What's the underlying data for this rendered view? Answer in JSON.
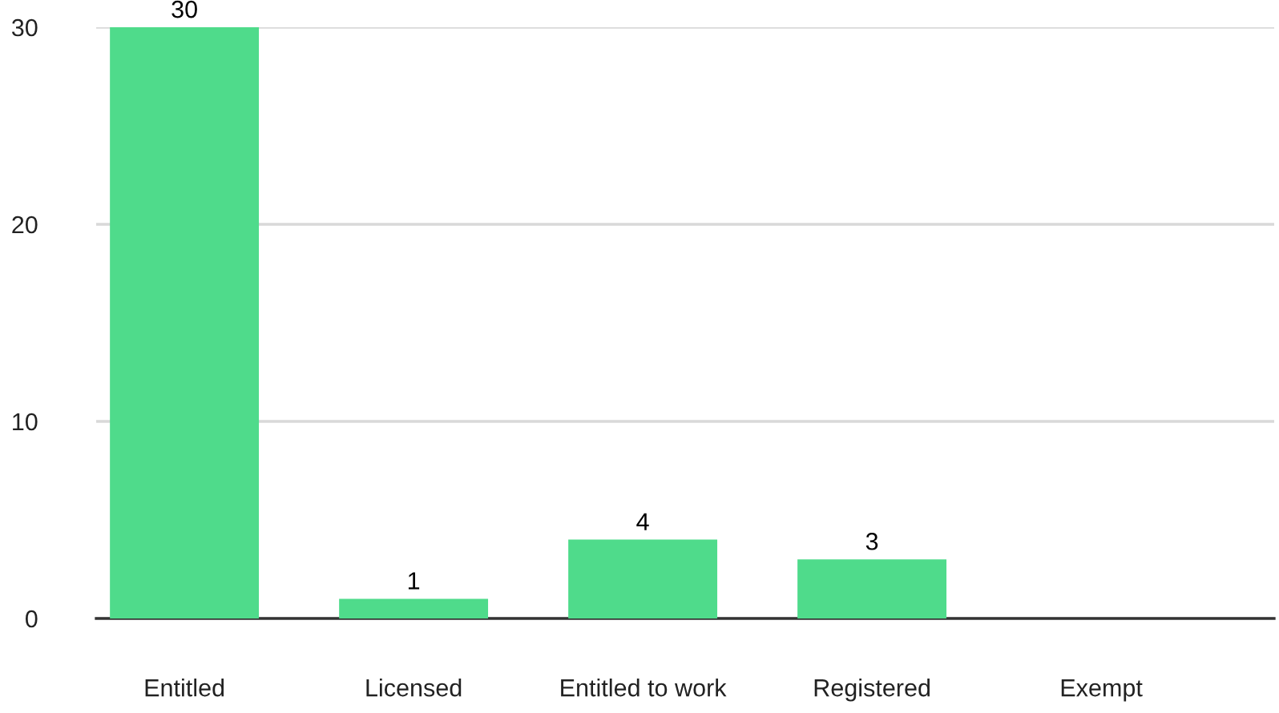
{
  "chart_data": {
    "type": "bar",
    "categories": [
      "Entitled",
      "Licensed",
      "Entitled to work",
      "Registered",
      "Exempt"
    ],
    "values": [
      30,
      1,
      4,
      3,
      null
    ],
    "color": "#4fdb8b",
    "ylim": [
      0,
      30
    ],
    "yticks": [
      0,
      10,
      20,
      30
    ],
    "grid": "y",
    "data_labels": true
  }
}
